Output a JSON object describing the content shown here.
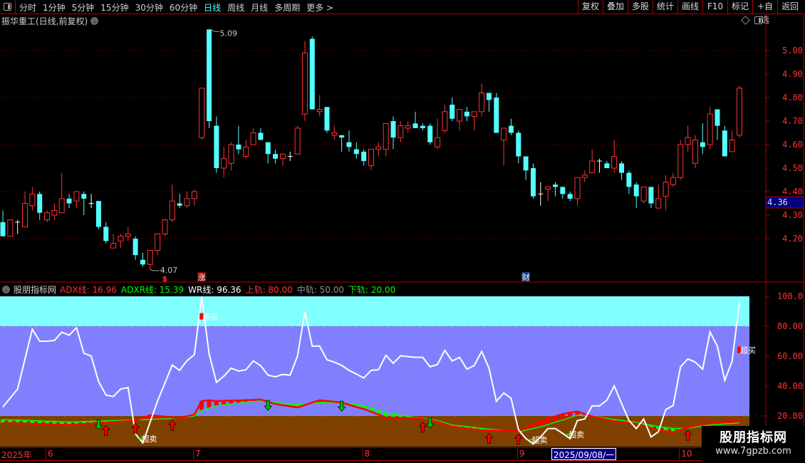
{
  "toolbar": {
    "periods": [
      "分时",
      "1分钟",
      "5分钟",
      "15分钟",
      "30分钟",
      "60分钟",
      "日线",
      "周线",
      "月线",
      "多周期",
      "更多 >"
    ],
    "active_period": "日线",
    "buttons": [
      "复权",
      "叠加",
      "多股",
      "统计",
      "画线",
      "F10",
      "标记",
      "+自选",
      "返回"
    ]
  },
  "chart_title": "振华重工(日线,前复权)",
  "price_panel": {
    "y_ticks": [
      "5.00",
      "4.90",
      "4.80",
      "4.70",
      "4.60",
      "4.50",
      "4.40",
      "4.30",
      "4.20"
    ],
    "cursor_price": "4.36",
    "high_label": "5.09",
    "low_label": "4.07",
    "markers": [
      {
        "text": "$",
        "color": "#ff3232",
        "candle": 23
      },
      {
        "text": "涨",
        "color": "#8b0000",
        "candle": 28
      },
      {
        "text": "财",
        "color": "#1a3a80",
        "candle": 72
      }
    ]
  },
  "indicator": {
    "name": "股朋指标网",
    "legend": [
      {
        "label": "ADX线: 16.96",
        "color": "#ff3232"
      },
      {
        "label": "ADXR线: 15.39",
        "color": "#00ff00"
      },
      {
        "label": "WR线: 96.36",
        "color": "#ffffff"
      },
      {
        "label": "上轨: 80.00",
        "color": "#ff3232"
      },
      {
        "label": "中轨: 50.00",
        "color": "#909090"
      },
      {
        "label": "下轨: 20.00",
        "color": "#00ff00"
      }
    ],
    "y_ticks": [
      "100.0",
      "80.00",
      "60.00",
      "40.00",
      "20.00"
    ],
    "overbought_label": "超买",
    "oversold_label": "超卖",
    "overbought_at": [
      28,
      101
    ],
    "oversold_at": [
      20,
      73,
      78
    ],
    "buy_arrows_at": [
      15,
      19,
      24,
      58,
      67,
      71,
      94
    ],
    "sell_arrows_at": [
      14,
      37,
      47,
      59
    ],
    "band_colors": {
      "overbought": "#80ffff",
      "middle": "#8080ff",
      "oversold": "#804000"
    }
  },
  "time_axis": {
    "labels": [
      {
        "text": "2025年",
        "candle": 1
      },
      {
        "text": "6",
        "candle": 7
      },
      {
        "text": "7",
        "candle": 27
      },
      {
        "text": "8",
        "candle": 50
      },
      {
        "text": "9",
        "candle": 71
      },
      {
        "text": "10",
        "candle": 93
      }
    ],
    "cursor_date": "2025/09/08/一"
  },
  "watermark": {
    "title": "股朋指标网",
    "url": "www.7gpzb.com"
  },
  "colors": {
    "up": "#ff3232",
    "down": "#54ffff",
    "doji": "#ffffff",
    "axis": "#ff3232",
    "wr": "#ffffff",
    "adx": "#ff0000",
    "adxr": "#00ff00"
  },
  "chart_data": {
    "type": "candlestick",
    "ylim": [
      4.05,
      5.12
    ],
    "ohlc": [
      [
        4.27,
        4.32,
        4.21,
        4.21
      ],
      [
        4.21,
        4.28,
        4.21,
        4.28
      ],
      [
        4.27,
        4.28,
        4.22,
        4.27
      ],
      [
        4.25,
        4.4,
        4.25,
        4.35
      ],
      [
        4.34,
        4.42,
        4.32,
        4.39
      ],
      [
        4.39,
        4.4,
        4.28,
        4.31
      ],
      [
        4.28,
        4.32,
        4.27,
        4.31
      ],
      [
        4.3,
        4.35,
        4.28,
        4.32
      ],
      [
        4.31,
        4.48,
        4.31,
        4.37
      ],
      [
        4.37,
        4.39,
        4.33,
        4.35
      ],
      [
        4.36,
        4.4,
        4.33,
        4.4
      ],
      [
        4.39,
        4.4,
        4.3,
        4.37
      ],
      [
        4.35,
        4.39,
        4.33,
        4.35
      ],
      [
        4.36,
        4.36,
        4.24,
        4.25
      ],
      [
        4.25,
        4.27,
        4.18,
        4.19
      ],
      [
        4.16,
        4.22,
        4.16,
        4.18
      ],
      [
        4.19,
        4.22,
        4.16,
        4.21
      ],
      [
        4.21,
        4.25,
        4.19,
        4.22
      ],
      [
        4.2,
        4.21,
        4.11,
        4.13
      ],
      [
        4.11,
        4.14,
        4.08,
        4.09
      ],
      [
        4.09,
        4.15,
        4.07,
        4.15
      ],
      [
        4.15,
        4.22,
        4.13,
        4.22
      ],
      [
        4.22,
        4.28,
        4.21,
        4.28
      ],
      [
        4.28,
        4.43,
        4.27,
        4.36
      ],
      [
        4.35,
        4.39,
        4.33,
        4.34
      ],
      [
        4.34,
        4.4,
        4.33,
        4.37
      ],
      [
        4.37,
        4.41,
        4.34,
        4.4
      ],
      [
        4.63,
        4.84,
        4.62,
        4.84
      ],
      [
        5.09,
        5.09,
        4.67,
        4.7
      ],
      [
        4.68,
        4.72,
        4.48,
        4.5
      ],
      [
        4.5,
        4.59,
        4.46,
        4.54
      ],
      [
        4.52,
        4.61,
        4.49,
        4.6
      ],
      [
        4.6,
        4.68,
        4.56,
        4.58
      ],
      [
        4.55,
        4.62,
        4.54,
        4.59
      ],
      [
        4.6,
        4.67,
        4.6,
        4.65
      ],
      [
        4.65,
        4.67,
        4.62,
        4.62
      ],
      [
        4.61,
        4.61,
        4.52,
        4.56
      ],
      [
        4.56,
        4.58,
        4.52,
        4.54
      ],
      [
        4.54,
        4.56,
        4.51,
        4.56
      ],
      [
        4.55,
        4.57,
        4.53,
        4.55
      ],
      [
        4.56,
        4.68,
        4.56,
        4.67
      ],
      [
        4.73,
        5.04,
        4.7,
        4.99
      ],
      [
        5.05,
        5.06,
        4.75,
        4.75
      ],
      [
        4.74,
        4.81,
        4.72,
        4.75
      ],
      [
        4.76,
        4.76,
        4.65,
        4.66
      ],
      [
        4.64,
        4.68,
        4.62,
        4.65
      ],
      [
        4.64,
        4.64,
        4.57,
        4.63
      ],
      [
        4.61,
        4.66,
        4.57,
        4.59
      ],
      [
        4.58,
        4.61,
        4.54,
        4.56
      ],
      [
        4.57,
        4.58,
        4.51,
        4.53
      ],
      [
        4.51,
        4.58,
        4.49,
        4.58
      ],
      [
        4.58,
        4.61,
        4.55,
        4.59
      ],
      [
        4.58,
        4.69,
        4.55,
        4.69
      ],
      [
        4.7,
        4.72,
        4.58,
        4.63
      ],
      [
        4.63,
        4.7,
        4.61,
        4.68
      ],
      [
        4.67,
        4.7,
        4.65,
        4.68
      ],
      [
        4.69,
        4.74,
        4.67,
        4.67
      ],
      [
        4.68,
        4.69,
        4.66,
        4.67
      ],
      [
        4.68,
        4.69,
        4.6,
        4.61
      ],
      [
        4.59,
        4.71,
        4.58,
        4.63
      ],
      [
        4.66,
        4.77,
        4.65,
        4.74
      ],
      [
        4.77,
        4.8,
        4.7,
        4.71
      ],
      [
        4.7,
        4.75,
        4.66,
        4.75
      ],
      [
        4.74,
        4.76,
        4.7,
        4.72
      ],
      [
        4.72,
        4.74,
        4.66,
        4.74
      ],
      [
        4.74,
        4.86,
        4.72,
        4.82
      ],
      [
        4.82,
        4.82,
        4.74,
        4.79
      ],
      [
        4.8,
        4.82,
        4.65,
        4.65
      ],
      [
        4.62,
        4.67,
        4.51,
        4.67
      ],
      [
        4.68,
        4.71,
        4.64,
        4.65
      ],
      [
        4.65,
        4.66,
        4.52,
        4.55
      ],
      [
        4.55,
        4.55,
        4.45,
        4.49
      ],
      [
        4.5,
        4.52,
        4.37,
        4.38
      ],
      [
        4.39,
        4.44,
        4.34,
        4.39
      ],
      [
        4.41,
        4.42,
        4.36,
        4.42
      ],
      [
        4.43,
        4.44,
        4.38,
        4.42
      ],
      [
        4.42,
        4.42,
        4.37,
        4.39
      ],
      [
        4.39,
        4.4,
        4.36,
        4.37
      ],
      [
        4.37,
        4.46,
        4.34,
        4.46
      ],
      [
        4.46,
        4.49,
        4.44,
        4.47
      ],
      [
        4.48,
        4.58,
        4.48,
        4.53
      ],
      [
        4.53,
        4.54,
        4.48,
        4.53
      ],
      [
        4.52,
        4.53,
        4.5,
        4.5
      ],
      [
        4.5,
        4.62,
        4.48,
        4.55
      ],
      [
        4.52,
        4.53,
        4.45,
        4.48
      ],
      [
        4.48,
        4.49,
        4.39,
        4.42
      ],
      [
        4.43,
        4.44,
        4.33,
        4.38
      ],
      [
        4.36,
        4.42,
        4.35,
        4.42
      ],
      [
        4.42,
        4.42,
        4.33,
        4.35
      ],
      [
        4.33,
        4.43,
        4.33,
        4.37
      ],
      [
        4.38,
        4.47,
        4.32,
        4.44
      ],
      [
        4.43,
        4.48,
        4.42,
        4.46
      ],
      [
        4.46,
        4.62,
        4.45,
        4.6
      ],
      [
        4.6,
        4.68,
        4.57,
        4.63
      ],
      [
        4.52,
        4.64,
        4.5,
        4.62
      ],
      [
        4.61,
        4.69,
        4.56,
        4.59
      ],
      [
        4.6,
        4.76,
        4.58,
        4.73
      ],
      [
        4.75,
        4.75,
        4.62,
        4.68
      ],
      [
        4.66,
        4.68,
        4.55,
        4.55
      ],
      [
        4.57,
        4.66,
        4.57,
        4.62
      ],
      [
        4.64,
        4.85,
        4.63,
        4.84
      ]
    ],
    "indicator_ylim": [
      0,
      100
    ],
    "series": [
      {
        "name": "WR线",
        "values": [
          26,
          32,
          38,
          58,
          78,
          70,
          70,
          70.5,
          76,
          74,
          79,
          62,
          60,
          43,
          34,
          33,
          38,
          39,
          8,
          2,
          16,
          30,
          42,
          54,
          50.5,
          57,
          61,
          99.7,
          61.6,
          42.5,
          46.6,
          52,
          50,
          50.9,
          56.8,
          53.6,
          47.3,
          46.2,
          47.8,
          47.3,
          60,
          89.8,
          66.7,
          66.7,
          57.6,
          56,
          53.8,
          50.5,
          48,
          45.4,
          50.5,
          50.9,
          60.6,
          55.2,
          60.3,
          59.7,
          59.2,
          59.2,
          52.9,
          54.4,
          63.9,
          56.8,
          59.2,
          51.3,
          53.8,
          63.2,
          52,
          29.8,
          35.4,
          31.8,
          10.8,
          5,
          1.3,
          6,
          11.6,
          11.6,
          8.4,
          4.8,
          17,
          18,
          26.7,
          26.7,
          30.6,
          40.1,
          28.3,
          17,
          11.6,
          18,
          6,
          9.5,
          24.3,
          27,
          52.9,
          58.1,
          56,
          51.3,
          76.2,
          66.7,
          43.8,
          56.5,
          96.36
        ]
      },
      {
        "name": "ADX线",
        "values": [
          15.5,
          15.3,
          15.2,
          15,
          14.8,
          14.7,
          14.5,
          14.3,
          14.1,
          14,
          14.3,
          14.6,
          15,
          15.3,
          15.6,
          16,
          16.3,
          16.6,
          17,
          18.8,
          20.5,
          20,
          19.5,
          19,
          18.6,
          19.8,
          21,
          30,
          30.5,
          30,
          30.1,
          30.3,
          30.4,
          30.6,
          30.8,
          31,
          29.5,
          28,
          27.2,
          26.5,
          25.7,
          27.3,
          29,
          30.5,
          30,
          29.5,
          28.9,
          27.5,
          26,
          24.6,
          22.8,
          21,
          19,
          18.9,
          18.8,
          18.7,
          18.6,
          17.8,
          17,
          16.2,
          14.6,
          13,
          12.3,
          11.7,
          11,
          10.4,
          10.3,
          10.2,
          10,
          9.9,
          9.8,
          12,
          14.2,
          16.5,
          18.1,
          19.7,
          21.3,
          22.2,
          23,
          21.3,
          19.7,
          18.6,
          17.5,
          16.5,
          16,
          15.4,
          14.9,
          13.4,
          12,
          10.5,
          9.8,
          9.2,
          10.8,
          12.4,
          13.5,
          14.5,
          15.6,
          16,
          16.3,
          16.6,
          16.96
        ]
      },
      {
        "name": "ADXR线",
        "values": [
          17.6,
          17.4,
          17.3,
          17.1,
          16.9,
          16.7,
          16.5,
          16.4,
          16.2,
          16,
          16.1,
          16.3,
          16.4,
          16.6,
          16.7,
          16.9,
          17,
          17.2,
          17.3,
          17.5,
          17.7,
          17.9,
          18.1,
          18.4,
          18.6,
          19.3,
          20,
          23.8,
          25.3,
          26.8,
          27.4,
          28,
          28.6,
          29.2,
          29.7,
          30,
          29.5,
          29,
          28.5,
          28,
          27.6,
          28.1,
          28.6,
          29,
          29,
          28.9,
          28.9,
          28.3,
          27.6,
          27,
          25.3,
          23.6,
          22,
          21.3,
          20.5,
          19.8,
          19,
          18.3,
          17.6,
          17,
          15.5,
          14,
          13.4,
          12.9,
          12.3,
          11.7,
          11.2,
          10.8,
          10.3,
          9.9,
          9.4,
          10.5,
          11.6,
          12.7,
          14.2,
          15.8,
          17.3,
          18.9,
          20.5,
          20.2,
          20,
          19.2,
          18.4,
          17.6,
          17,
          16.4,
          15.7,
          14.8,
          13.9,
          13,
          12.3,
          11.6,
          11.7,
          11.9,
          12.6,
          13.3,
          14,
          14.3,
          14.7,
          15,
          15.39
        ]
      }
    ],
    "levels": {
      "upper": 80,
      "middle": 50,
      "lower": 20
    }
  }
}
